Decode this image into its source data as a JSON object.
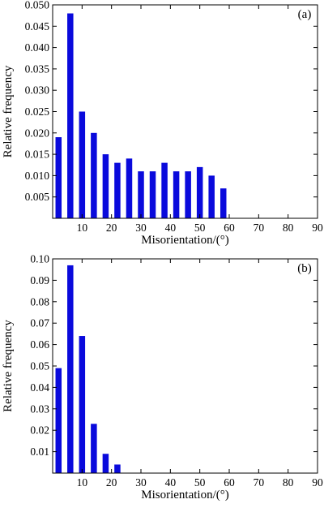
{
  "chart_data": [
    {
      "type": "bar",
      "panel_label": "(a)",
      "xlabel": "Misorientation/(°)",
      "ylabel": "Relative frequency",
      "xlim": [
        0,
        90
      ],
      "ylim": [
        0,
        0.05
      ],
      "xticks": [
        10,
        20,
        30,
        40,
        50,
        60,
        70,
        80,
        90
      ],
      "yticks": [
        0.005,
        0.01,
        0.015,
        0.02,
        0.025,
        0.03,
        0.035,
        0.04,
        0.045,
        0.05
      ],
      "ytick_labels": [
        "0.005",
        "0.010",
        "0.015",
        "0.020",
        "0.025",
        "0.030",
        "0.035",
        "0.040",
        "0.045",
        "0.050"
      ],
      "bar_color": "#0a0adc",
      "x": [
        2,
        6,
        10,
        14,
        18,
        22,
        26,
        30,
        34,
        38,
        42,
        46,
        50,
        54,
        58
      ],
      "values": [
        0.019,
        0.048,
        0.025,
        0.02,
        0.015,
        0.013,
        0.014,
        0.011,
        0.011,
        0.013,
        0.011,
        0.011,
        0.012,
        0.01,
        0.007
      ]
    },
    {
      "type": "bar",
      "panel_label": "(b)",
      "xlabel": "Misorientation/(°)",
      "ylabel": "Relative frequency",
      "xlim": [
        0,
        90
      ],
      "ylim": [
        0,
        0.1
      ],
      "xticks": [
        10,
        20,
        30,
        40,
        50,
        60,
        70,
        80,
        90
      ],
      "yticks": [
        0.01,
        0.02,
        0.03,
        0.04,
        0.05,
        0.06,
        0.07,
        0.08,
        0.09,
        0.1
      ],
      "ytick_labels": [
        "0.01",
        "0.02",
        "0.03",
        "0.04",
        "0.05",
        "0.06",
        "0.07",
        "0.08",
        "0.09",
        "0.10"
      ],
      "bar_color": "#0a0adc",
      "x": [
        2,
        6,
        10,
        14,
        18,
        22
      ],
      "values": [
        0.049,
        0.097,
        0.064,
        0.023,
        0.009,
        0.004
      ]
    }
  ]
}
